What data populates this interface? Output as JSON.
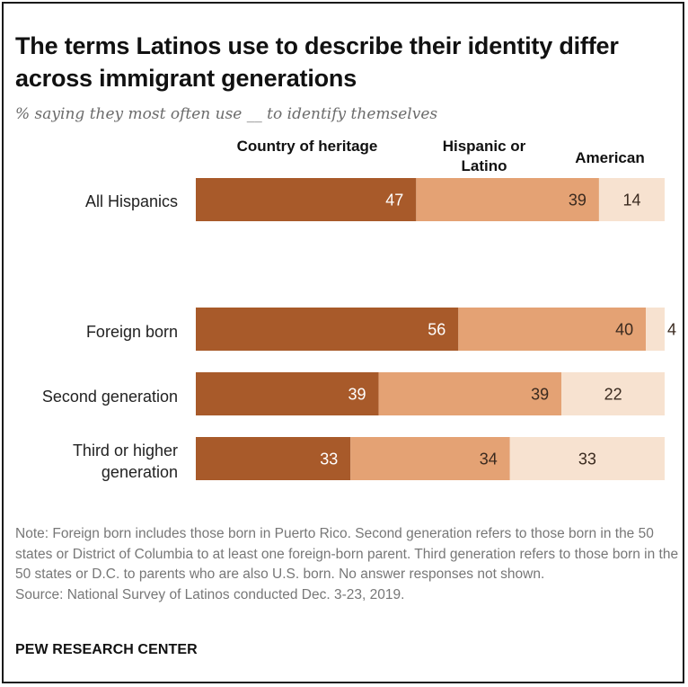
{
  "title": "The terms Latinos use to describe their identity differ across immigrant generations",
  "subtitle": "% saying they most often use __ to identify themselves",
  "note": "Note: Foreign born includes those born in Puerto Rico. Second generation refers to those born in the 50 states or District of Columbia to at least one foreign-born parent. Third generation refers to those born in the 50 states or D.C. to parents who are also U.S. born. No answer responses not shown.",
  "source": "Source: National Survey of Latinos conducted Dec. 3-23, 2019.",
  "org": "PEW RESEARCH CENTER",
  "chart_data": {
    "type": "bar",
    "orientation": "horizontal-stacked",
    "title": "The terms Latinos use to describe their identity differ across immigrant generations",
    "categories": [
      "All Hispanics",
      "Foreign born",
      "Second generation",
      "Third or higher generation"
    ],
    "series": [
      {
        "name": "Country of heritage",
        "values": [
          47,
          56,
          39,
          33
        ],
        "color": "#a85a2a"
      },
      {
        "name": "Hispanic or Latino",
        "values": [
          39,
          40,
          39,
          34
        ],
        "color": "#e4a274"
      },
      {
        "name": "American",
        "values": [
          14,
          4,
          22,
          33
        ],
        "color": "#f7e2d0"
      }
    ],
    "xlim": [
      0,
      100
    ],
    "label_colors": [
      "#ffffff",
      "#3a2a1f",
      "#3a2a1f"
    ]
  }
}
